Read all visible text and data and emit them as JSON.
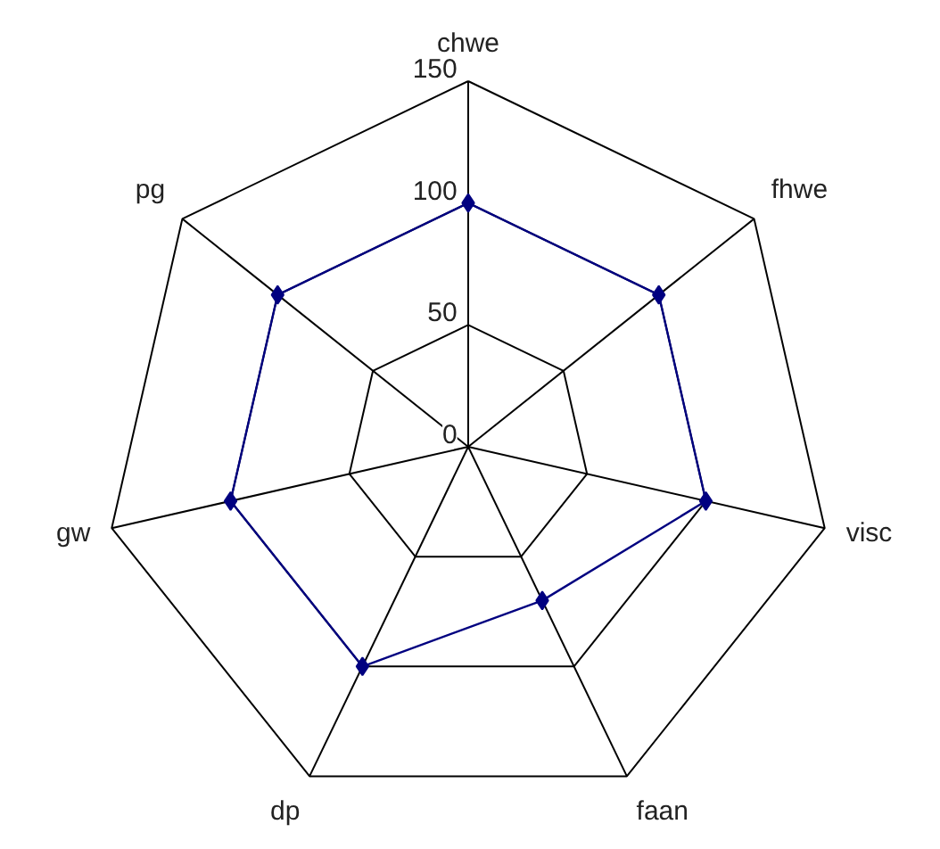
{
  "chart_data": {
    "type": "radar",
    "categories": [
      "chwe",
      "fhwe",
      "visc",
      "faan",
      "dp",
      "gw",
      "pg"
    ],
    "series": [
      {
        "color": "#000080",
        "values": [
          100,
          100,
          100,
          70,
          100,
          100,
          100
        ]
      }
    ],
    "ylim": [
      0,
      150
    ],
    "yticks": [
      0,
      50,
      100,
      150
    ],
    "grid": true,
    "marker": "diamond",
    "line_style": "solid"
  }
}
